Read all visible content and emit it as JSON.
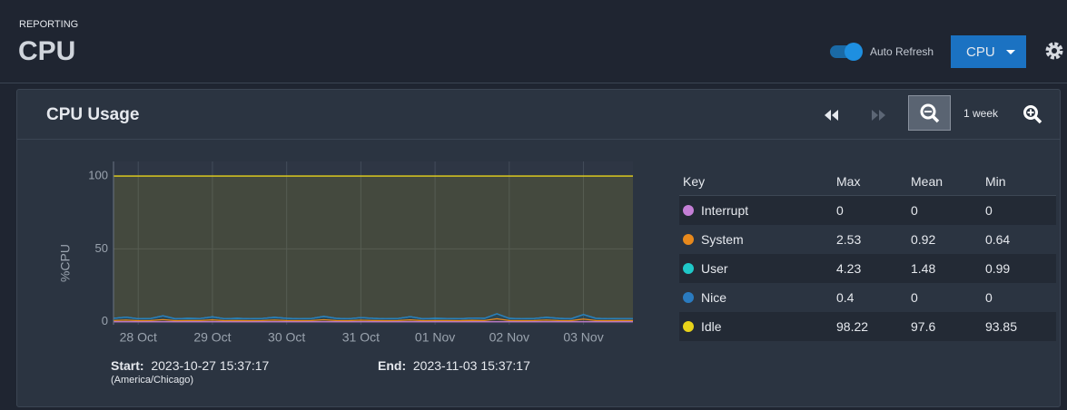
{
  "header": {
    "section": "REPORTING",
    "title": "CPU",
    "auto_refresh": "Auto Refresh",
    "dropdown": "CPU"
  },
  "panel": {
    "title": "CPU Usage",
    "zoom_label": "1 week",
    "start_label": "Start:",
    "start": "2023-10-27 15:37:17",
    "timezone": "(America/Chicago)",
    "end_label": "End:",
    "end": "2023-11-03 15:37:17"
  },
  "chart_data": {
    "type": "area",
    "stacked": true,
    "ylabel": "%CPU",
    "ylim": [
      -2,
      110
    ],
    "yticks": [
      0,
      50,
      100
    ],
    "grid": true,
    "categories": [
      null,
      null,
      "28 Oct",
      null,
      null,
      null,
      null,
      null,
      "29 Oct",
      null,
      null,
      null,
      null,
      null,
      "30 Oct",
      null,
      null,
      null,
      null,
      null,
      "31 Oct",
      null,
      null,
      null,
      null,
      null,
      "01 Nov",
      null,
      null,
      null,
      null,
      null,
      "02 Nov",
      null,
      null,
      null,
      null,
      null,
      "03 Nov",
      null,
      null,
      null,
      null
    ],
    "series": [
      {
        "name": "Interrupt",
        "color": "#c47fd6",
        "values": [
          0,
          0,
          0,
          0,
          0,
          0,
          0,
          0,
          0,
          0,
          0,
          0,
          0,
          0,
          0,
          0,
          0,
          0,
          0,
          0,
          0,
          0,
          0,
          0,
          0,
          0,
          0,
          0,
          0,
          0,
          0,
          0,
          0,
          0,
          0,
          0,
          0,
          0,
          0,
          0,
          0,
          0,
          0
        ]
      },
      {
        "name": "System",
        "color": "#e8891c",
        "values": [
          0.9,
          1.2,
          0.8,
          0.9,
          1.5,
          0.8,
          0.9,
          0.9,
          1.3,
          0.8,
          0.9,
          0.8,
          0.9,
          1.2,
          0.9,
          0.8,
          0.9,
          1.4,
          0.9,
          0.8,
          1.1,
          0.9,
          0.8,
          0.9,
          1.3,
          0.8,
          0.9,
          0.9,
          0.8,
          1.0,
          0.9,
          2.1,
          0.9,
          0.8,
          0.9,
          1.2,
          0.9,
          0.8,
          1.9,
          0.9,
          0.8,
          0.9,
          0.9
        ]
      },
      {
        "name": "User",
        "color": "#1fc8c8",
        "values": [
          1.5,
          2.0,
          1.3,
          1.4,
          2.6,
          1.3,
          1.5,
          1.4,
          2.1,
          1.3,
          1.5,
          1.3,
          1.4,
          1.9,
          1.5,
          1.3,
          1.4,
          2.3,
          1.5,
          1.3,
          1.8,
          1.5,
          1.3,
          1.4,
          2.2,
          1.3,
          1.5,
          1.4,
          1.3,
          1.6,
          1.5,
          3.4,
          1.5,
          1.3,
          1.4,
          1.9,
          1.5,
          1.3,
          3.1,
          1.5,
          1.3,
          1.4,
          1.4
        ]
      },
      {
        "name": "Nice",
        "color": "#2a7bc0",
        "values": [
          0,
          0,
          0,
          0,
          0,
          0,
          0,
          0,
          0,
          0,
          0,
          0,
          0,
          0,
          0,
          0,
          0,
          0,
          0,
          0,
          0,
          0,
          0,
          0,
          0,
          0,
          0,
          0,
          0,
          0,
          0,
          0,
          0,
          0,
          0,
          0,
          0,
          0,
          0,
          0,
          0,
          0,
          0
        ]
      },
      {
        "name": "Idle",
        "color": "#e8d31a",
        "values": [
          97.6,
          96.8,
          97.9,
          97.7,
          95.9,
          97.9,
          97.6,
          97.7,
          96.6,
          97.9,
          97.6,
          97.9,
          97.7,
          96.9,
          97.6,
          97.9,
          97.7,
          96.3,
          97.6,
          97.9,
          97.1,
          97.6,
          97.9,
          97.7,
          96.5,
          97.9,
          97.6,
          97.7,
          97.9,
          97.4,
          97.6,
          94.5,
          97.6,
          97.9,
          97.7,
          96.9,
          97.6,
          97.9,
          95.0,
          97.6,
          97.9,
          97.7,
          97.7
        ]
      }
    ]
  },
  "stats_table": {
    "headers": [
      "Key",
      "Max",
      "Mean",
      "Min"
    ],
    "rows": [
      [
        0,
        0,
        0
      ],
      [
        2.53,
        0.92,
        0.64
      ],
      [
        4.23,
        1.48,
        0.99
      ],
      [
        0.4,
        0,
        0
      ],
      [
        98.22,
        97.6,
        93.85
      ]
    ]
  }
}
